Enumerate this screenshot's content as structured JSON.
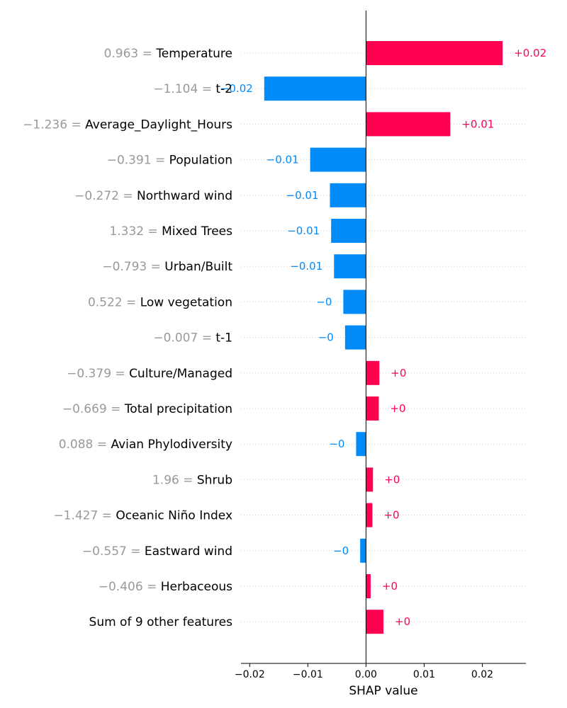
{
  "chart_data": {
    "type": "bar",
    "orientation": "horizontal",
    "xlabel": "SHAP value",
    "xlim": [
      -0.0215,
      0.0275
    ],
    "xticks": [
      -0.02,
      -0.01,
      0.0,
      0.01,
      0.02
    ],
    "xtick_labels": [
      "−0.02",
      "−0.01",
      "0.00",
      "0.01",
      "0.02"
    ],
    "grid": "dotted horizontal",
    "colors": {
      "positive": "#ff0051",
      "negative": "#008bfb",
      "feature_value": "#999999"
    },
    "rows": [
      {
        "feature_value": "0.963",
        "feature": "Temperature",
        "value": 0.0235,
        "label": "+0.02"
      },
      {
        "feature_value": "−1.104",
        "feature": "t-2",
        "value": -0.0175,
        "label": "−0.02"
      },
      {
        "feature_value": "−1.236",
        "feature": "Average_Daylight_Hours",
        "value": 0.0145,
        "label": "+0.01"
      },
      {
        "feature_value": "−0.391",
        "feature": "Population",
        "value": -0.0096,
        "label": "−0.01"
      },
      {
        "feature_value": "−0.272",
        "feature": "Northward wind",
        "value": -0.0062,
        "label": "−0.01"
      },
      {
        "feature_value": "1.332",
        "feature": "Mixed Trees",
        "value": -0.006,
        "label": "−0.01"
      },
      {
        "feature_value": "−0.793",
        "feature": "Urban/Built",
        "value": -0.0055,
        "label": "−0.01"
      },
      {
        "feature_value": "0.522",
        "feature": "Low vegetation",
        "value": -0.0039,
        "label": "−0"
      },
      {
        "feature_value": "−0.007",
        "feature": "t-1",
        "value": -0.0036,
        "label": "−0"
      },
      {
        "feature_value": "−0.379",
        "feature": "Culture/Managed",
        "value": 0.0023,
        "label": "+0"
      },
      {
        "feature_value": "−0.669",
        "feature": "Total precipitation",
        "value": 0.0022,
        "label": "+0"
      },
      {
        "feature_value": "0.088",
        "feature": "Avian Phylodiversity",
        "value": -0.0017,
        "label": "−0"
      },
      {
        "feature_value": "1.96",
        "feature": "Shrub",
        "value": 0.0012,
        "label": "+0"
      },
      {
        "feature_value": "−1.427",
        "feature": "Oceanic Niño Index",
        "value": 0.0011,
        "label": "+0"
      },
      {
        "feature_value": "−0.557",
        "feature": "Eastward wind",
        "value": -0.001,
        "label": "−0"
      },
      {
        "feature_value": "−0.406",
        "feature": "Herbaceous",
        "value": 0.0008,
        "label": "+0"
      },
      {
        "feature_value": "",
        "feature": "Sum of 9 other features",
        "value": 0.003,
        "label": "+0"
      }
    ]
  }
}
